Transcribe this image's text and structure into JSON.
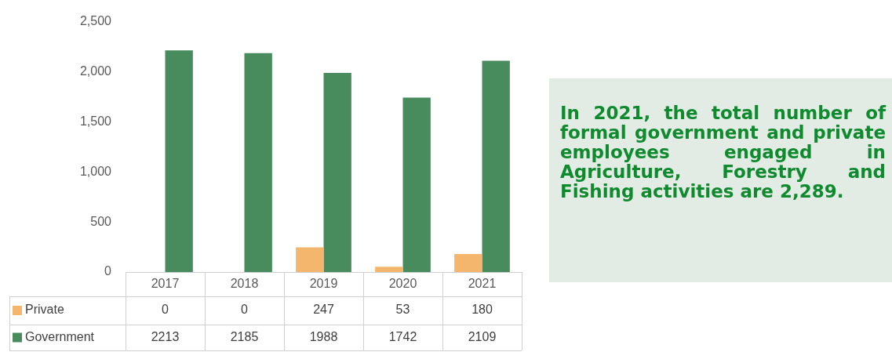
{
  "chart_data": {
    "type": "bar",
    "categories": [
      "2017",
      "2018",
      "2019",
      "2020",
      "2021"
    ],
    "series": [
      {
        "name": "Private",
        "color": "#f4b66c",
        "values": [
          0,
          0,
          247,
          53,
          180
        ]
      },
      {
        "name": "Government",
        "color": "#488c5e",
        "values": [
          2213,
          2185,
          1988,
          1742,
          2109
        ]
      }
    ],
    "ylim": [
      0,
      2500
    ],
    "yticks": [
      0,
      {
        "value": 500,
        "label": "500"
      },
      {
        "value": 1000,
        "label": "1,000"
      },
      {
        "value": 1500,
        "label": "1,500"
      },
      {
        "value": 2000,
        "label": "2,000"
      },
      {
        "value": 2500,
        "label": "2,500"
      }
    ],
    "grid": false,
    "legend": "bottom",
    "data_labels": true,
    "annotations": [
      "In 2021, the total number of formal government and private employees engaged in Agriculture, Forestry and Fishing activities are 2,289."
    ]
  }
}
